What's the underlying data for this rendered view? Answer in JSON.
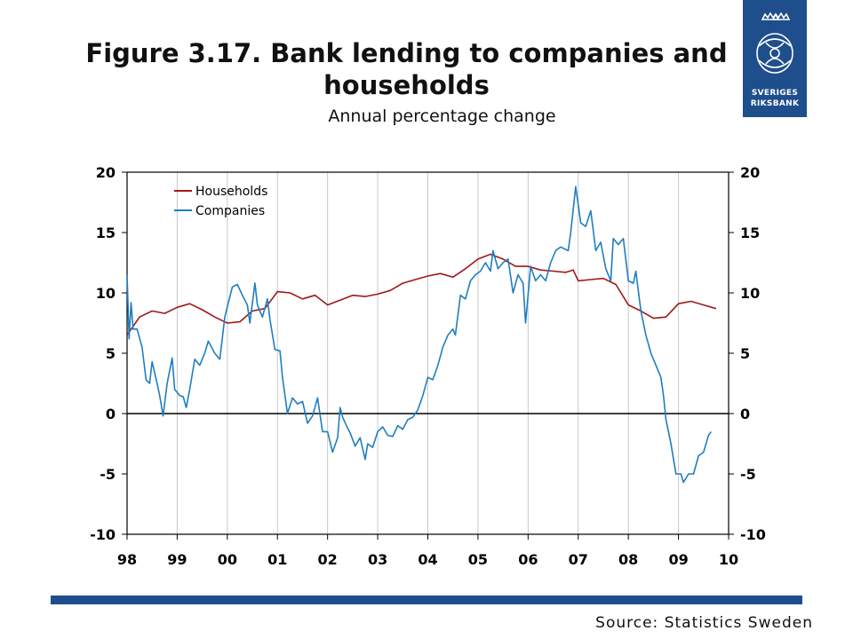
{
  "header": {
    "title": "Figure 3.17. Bank lending to companies and households",
    "subtitle": "Annual percentage change"
  },
  "logo": {
    "icon": "riksbank-crest-icon",
    "line1": "SVERIGES",
    "line2": "RIKSBANK",
    "color": "#1f4e8c"
  },
  "footer": {
    "source": "Source: Statistics Sweden",
    "bar_color": "#1f4e8c"
  },
  "chart_data": {
    "type": "line",
    "title": "Figure 3.17. Bank lending to companies and households",
    "subtitle": "Annual percentage change",
    "xlabel": "",
    "ylabel": "",
    "x_ticks": [
      "98",
      "99",
      "00",
      "01",
      "02",
      "03",
      "04",
      "05",
      "06",
      "07",
      "08",
      "09",
      "10"
    ],
    "xlim": [
      1998,
      2010
    ],
    "ylim": [
      -10,
      20
    ],
    "y_ticks": [
      -10,
      -5,
      0,
      5,
      10,
      15,
      20
    ],
    "y_axis_right": true,
    "grid": "vertical",
    "legend_position": "top-left",
    "series": [
      {
        "name": "Households",
        "color": "#a01818",
        "points": [
          [
            1998.0,
            6.5
          ],
          [
            1998.25,
            8.0
          ],
          [
            1998.5,
            8.5
          ],
          [
            1998.75,
            8.3
          ],
          [
            1999.0,
            8.8
          ],
          [
            1999.25,
            9.1
          ],
          [
            1999.5,
            8.6
          ],
          [
            1999.75,
            8.0
          ],
          [
            2000.0,
            7.5
          ],
          [
            2000.25,
            7.6
          ],
          [
            2000.5,
            8.5
          ],
          [
            2000.75,
            8.7
          ],
          [
            2001.0,
            10.1
          ],
          [
            2001.25,
            10.0
          ],
          [
            2001.5,
            9.5
          ],
          [
            2001.75,
            9.8
          ],
          [
            2002.0,
            9.0
          ],
          [
            2002.25,
            9.4
          ],
          [
            2002.5,
            9.8
          ],
          [
            2002.75,
            9.7
          ],
          [
            2003.0,
            9.9
          ],
          [
            2003.25,
            10.2
          ],
          [
            2003.5,
            10.8
          ],
          [
            2003.75,
            11.1
          ],
          [
            2004.0,
            11.4
          ],
          [
            2004.25,
            11.6
          ],
          [
            2004.5,
            11.3
          ],
          [
            2004.75,
            12.0
          ],
          [
            2005.0,
            12.8
          ],
          [
            2005.25,
            13.2
          ],
          [
            2005.5,
            12.8
          ],
          [
            2005.75,
            12.2
          ],
          [
            2006.0,
            12.2
          ],
          [
            2006.25,
            11.9
          ],
          [
            2006.5,
            11.8
          ],
          [
            2006.75,
            11.7
          ],
          [
            2006.9,
            11.9
          ],
          [
            2007.0,
            11.0
          ],
          [
            2007.25,
            11.1
          ],
          [
            2007.5,
            11.2
          ],
          [
            2007.75,
            10.7
          ],
          [
            2008.0,
            9.0
          ],
          [
            2008.25,
            8.5
          ],
          [
            2008.5,
            7.9
          ],
          [
            2008.75,
            8.0
          ],
          [
            2009.0,
            9.1
          ],
          [
            2009.25,
            9.3
          ],
          [
            2009.5,
            9.0
          ],
          [
            2009.75,
            8.7
          ]
        ]
      },
      {
        "name": "Companies",
        "color": "#1f7ec0",
        "points": [
          [
            1998.0,
            11.5
          ],
          [
            1998.04,
            6.2
          ],
          [
            1998.08,
            9.2
          ],
          [
            1998.12,
            7.0
          ],
          [
            1998.2,
            7.0
          ],
          [
            1998.3,
            5.5
          ],
          [
            1998.38,
            2.8
          ],
          [
            1998.45,
            2.5
          ],
          [
            1998.5,
            4.3
          ],
          [
            1998.6,
            2.5
          ],
          [
            1998.65,
            1.5
          ],
          [
            1998.72,
            -0.2
          ],
          [
            1998.8,
            2.5
          ],
          [
            1998.9,
            4.6
          ],
          [
            1998.95,
            2.0
          ],
          [
            1999.05,
            1.5
          ],
          [
            1999.12,
            1.4
          ],
          [
            1999.18,
            0.5
          ],
          [
            1999.25,
            2.0
          ],
          [
            1999.35,
            4.5
          ],
          [
            1999.45,
            4.0
          ],
          [
            1999.55,
            5.0
          ],
          [
            1999.62,
            6.0
          ],
          [
            1999.75,
            5.0
          ],
          [
            1999.85,
            4.5
          ],
          [
            1999.95,
            8.0
          ],
          [
            2000.1,
            10.5
          ],
          [
            2000.2,
            10.7
          ],
          [
            2000.3,
            9.8
          ],
          [
            2000.4,
            9.0
          ],
          [
            2000.45,
            7.5
          ],
          [
            2000.55,
            10.8
          ],
          [
            2000.6,
            9.0
          ],
          [
            2000.7,
            8.0
          ],
          [
            2000.8,
            9.5
          ],
          [
            2000.85,
            7.8
          ],
          [
            2000.95,
            5.3
          ],
          [
            2001.05,
            5.2
          ],
          [
            2001.1,
            3.0
          ],
          [
            2001.15,
            1.5
          ],
          [
            2001.2,
            0.0
          ],
          [
            2001.3,
            1.3
          ],
          [
            2001.4,
            0.8
          ],
          [
            2001.5,
            1.0
          ],
          [
            2001.6,
            -0.8
          ],
          [
            2001.7,
            -0.2
          ],
          [
            2001.8,
            1.3
          ],
          [
            2001.9,
            -1.5
          ],
          [
            2002.0,
            -1.5
          ],
          [
            2002.1,
            -3.2
          ],
          [
            2002.2,
            -2.0
          ],
          [
            2002.25,
            0.5
          ],
          [
            2002.3,
            -0.3
          ],
          [
            2002.4,
            -1.2
          ],
          [
            2002.45,
            -1.6
          ],
          [
            2002.55,
            -2.7
          ],
          [
            2002.65,
            -2.0
          ],
          [
            2002.75,
            -3.8
          ],
          [
            2002.8,
            -2.5
          ],
          [
            2002.9,
            -2.8
          ],
          [
            2003.0,
            -1.5
          ],
          [
            2003.1,
            -1.1
          ],
          [
            2003.2,
            -1.8
          ],
          [
            2003.3,
            -1.9
          ],
          [
            2003.4,
            -1.0
          ],
          [
            2003.5,
            -1.3
          ],
          [
            2003.6,
            -0.5
          ],
          [
            2003.7,
            -0.3
          ],
          [
            2003.8,
            0.3
          ],
          [
            2003.9,
            1.5
          ],
          [
            2004.0,
            3.0
          ],
          [
            2004.1,
            2.8
          ],
          [
            2004.2,
            4.0
          ],
          [
            2004.3,
            5.5
          ],
          [
            2004.4,
            6.5
          ],
          [
            2004.5,
            7.0
          ],
          [
            2004.55,
            6.5
          ],
          [
            2004.65,
            9.8
          ],
          [
            2004.75,
            9.5
          ],
          [
            2004.85,
            11.0
          ],
          [
            2004.95,
            11.5
          ],
          [
            2005.05,
            11.8
          ],
          [
            2005.15,
            12.5
          ],
          [
            2005.25,
            11.8
          ],
          [
            2005.3,
            13.5
          ],
          [
            2005.4,
            12.0
          ],
          [
            2005.5,
            12.5
          ],
          [
            2005.6,
            12.8
          ],
          [
            2005.7,
            10.0
          ],
          [
            2005.8,
            11.5
          ],
          [
            2005.9,
            10.8
          ],
          [
            2005.95,
            7.5
          ],
          [
            2006.05,
            12.2
          ],
          [
            2006.15,
            11.0
          ],
          [
            2006.25,
            11.5
          ],
          [
            2006.35,
            11.0
          ],
          [
            2006.45,
            12.5
          ],
          [
            2006.55,
            13.5
          ],
          [
            2006.65,
            13.8
          ],
          [
            2006.8,
            13.5
          ],
          [
            2006.85,
            15.0
          ],
          [
            2006.95,
            18.8
          ],
          [
            2007.05,
            15.8
          ],
          [
            2007.15,
            15.5
          ],
          [
            2007.25,
            16.8
          ],
          [
            2007.35,
            13.5
          ],
          [
            2007.45,
            14.2
          ],
          [
            2007.55,
            12.0
          ],
          [
            2007.65,
            11.0
          ],
          [
            2007.7,
            14.5
          ],
          [
            2007.8,
            14.0
          ],
          [
            2007.9,
            14.5
          ],
          [
            2008.0,
            11.0
          ],
          [
            2008.1,
            10.8
          ],
          [
            2008.15,
            11.8
          ],
          [
            2008.25,
            8.5
          ],
          [
            2008.35,
            6.5
          ],
          [
            2008.45,
            5.0
          ],
          [
            2008.55,
            4.0
          ],
          [
            2008.65,
            3.0
          ],
          [
            2008.7,
            1.5
          ],
          [
            2008.75,
            -0.5
          ],
          [
            2008.85,
            -2.5
          ],
          [
            2008.95,
            -5.0
          ],
          [
            2009.05,
            -5.0
          ],
          [
            2009.1,
            -5.7
          ],
          [
            2009.2,
            -5.0
          ],
          [
            2009.3,
            -5.0
          ],
          [
            2009.4,
            -3.5
          ],
          [
            2009.5,
            -3.2
          ],
          [
            2009.6,
            -1.8
          ],
          [
            2009.65,
            -1.5
          ]
        ]
      }
    ]
  }
}
